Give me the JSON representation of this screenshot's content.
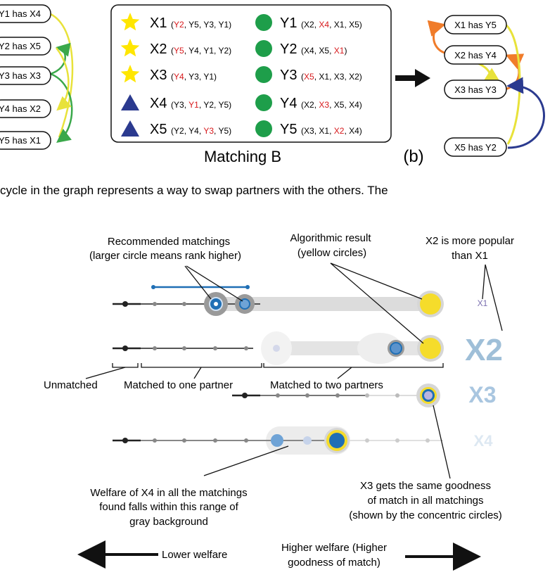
{
  "top_left_graph": {
    "nodes": [
      "Y1 has X4",
      "Y2 has X5",
      "Y3 has X3",
      "Y4 has X2",
      "Y5 has X1"
    ]
  },
  "matching_b": {
    "title": "Matching B",
    "left": [
      {
        "shape": "star",
        "name": "X1",
        "prefs": [
          {
            "t": "Y2",
            "red": true
          },
          {
            "t": "Y5"
          },
          {
            "t": "Y3"
          },
          {
            "t": "Y1"
          }
        ]
      },
      {
        "shape": "star",
        "name": "X2",
        "prefs": [
          {
            "t": "Y5",
            "red": true
          },
          {
            "t": "Y4"
          },
          {
            "t": "Y1"
          },
          {
            "t": "Y2"
          }
        ]
      },
      {
        "shape": "star",
        "name": "X3",
        "prefs": [
          {
            "t": "Y4",
            "red": true
          },
          {
            "t": "Y3"
          },
          {
            "t": "Y1"
          }
        ]
      },
      {
        "shape": "triangle",
        "name": "X4",
        "prefs": [
          {
            "t": "Y3"
          },
          {
            "t": "Y1",
            "red": true
          },
          {
            "t": "Y2"
          },
          {
            "t": "Y5"
          }
        ]
      },
      {
        "shape": "triangle",
        "name": "X5",
        "prefs": [
          {
            "t": "Y2"
          },
          {
            "t": "Y4"
          },
          {
            "t": "Y3",
            "red": true
          },
          {
            "t": "Y5"
          }
        ]
      }
    ],
    "right": [
      {
        "name": "Y1",
        "prefs": [
          {
            "t": "X2"
          },
          {
            "t": "X4",
            "red": true
          },
          {
            "t": "X1"
          },
          {
            "t": "X5"
          }
        ]
      },
      {
        "name": "Y2",
        "prefs": [
          {
            "t": "X4"
          },
          {
            "t": "X5"
          },
          {
            "t": "X1",
            "red": true
          }
        ]
      },
      {
        "name": "Y3",
        "prefs": [
          {
            "t": "X5",
            "red": true
          },
          {
            "t": "X1"
          },
          {
            "t": "X3"
          },
          {
            "t": "X2"
          }
        ]
      },
      {
        "name": "Y4",
        "prefs": [
          {
            "t": "X2"
          },
          {
            "t": "X3",
            "red": true
          },
          {
            "t": "X5"
          },
          {
            "t": "X4"
          }
        ]
      },
      {
        "name": "Y5",
        "prefs": [
          {
            "t": "X3"
          },
          {
            "t": "X1"
          },
          {
            "t": "X2",
            "red": true
          },
          {
            "t": "X4"
          }
        ]
      }
    ]
  },
  "panel_label": "(b)",
  "right_graph": {
    "nodes": [
      "X1 has Y5",
      "X2 has Y4",
      "X3 has Y3",
      "X5 has Y2"
    ]
  },
  "caption_fragment": "cycle in the graph represents a way to swap partners with the others. The",
  "welfare": {
    "row_labels": [
      "X1",
      "X2",
      "X3",
      "X4"
    ],
    "annotations": {
      "recommended": [
        "Recommended matchings",
        "(larger circle means rank higher)"
      ],
      "algorithmic": [
        "Algorithmic result",
        "(yellow circles)"
      ],
      "popular": [
        "X2 is more popular",
        "than X1"
      ],
      "unmatched": "Unmatched",
      "one_partner": "Matched to one partner",
      "two_partners": "Matched to two partners",
      "x4_range": [
        "Welfare of X4 in all the matchings",
        "found falls within this range of",
        "gray background"
      ],
      "x3_same": [
        "X3 gets the same goodness",
        "of match in all matchings",
        "(shown by the concentric circles)"
      ]
    },
    "lower_welfare": "Lower welfare",
    "higher_welfare": [
      "Higher welfare (Higher",
      "goodness of match)"
    ]
  },
  "colors": {
    "star": "#ffe600",
    "triangle": "#2b3a8f",
    "dot": "#1e9e4a",
    "red": "#d7191c",
    "algorithmic": "#f5dc2b",
    "recommended": "#1f6fb5"
  }
}
